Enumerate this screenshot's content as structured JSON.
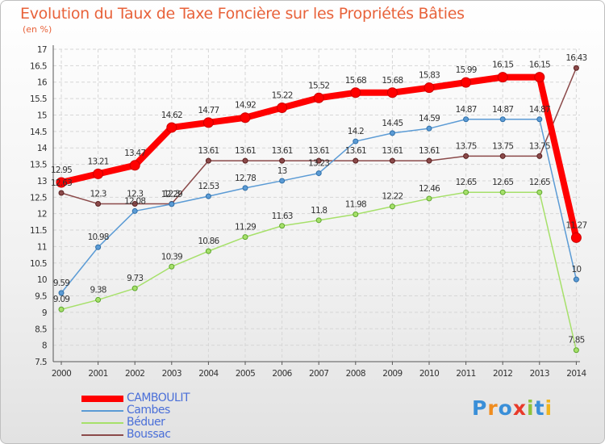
{
  "title": "Evolution du Taux de Taxe Foncière sur les Propriétés Bâties",
  "subtitle": "(en %)",
  "logo": {
    "text": "Proxiti",
    "colors": [
      "#3a8fd8",
      "#f08c1e",
      "#3a8fd8",
      "#e83a2a",
      "#8fc23a",
      "#3a8fd8",
      "#f0b41e"
    ]
  },
  "chart_data": {
    "type": "line",
    "x": [
      "2000",
      "2001",
      "2002",
      "2003",
      "2004",
      "2005",
      "2006",
      "2007",
      "2008",
      "2009",
      "2010",
      "2011",
      "2012",
      "2013",
      "2014"
    ],
    "ylim": [
      7.5,
      17
    ],
    "ytick_step": 0.5,
    "grid": true,
    "legend_position": "bottom-left",
    "series": [
      {
        "name": "CAMBOULIT",
        "color": "#ff0000",
        "values": [
          12.95,
          13.21,
          13.47,
          14.62,
          14.77,
          14.92,
          15.22,
          15.52,
          15.68,
          15.68,
          15.83,
          15.99,
          16.15,
          16.15,
          11.27
        ],
        "labels": [
          "12.95",
          "13.21",
          "13.47",
          "14.62",
          "14.77",
          "14.92",
          "15.22",
          "15.52",
          "15.68",
          "15.68",
          "15.83",
          "15.99",
          "16.15",
          "16.15",
          "11.27"
        ]
      },
      {
        "name": "Cambes",
        "color": "#5b9bd5",
        "values": [
          9.59,
          10.98,
          12.08,
          12.29,
          12.53,
          12.78,
          13,
          13.23,
          14.2,
          14.45,
          14.59,
          14.87,
          14.87,
          14.87,
          10
        ],
        "labels": [
          "9.59",
          "10.98",
          "12.08",
          "12.29",
          "12.53",
          "12.78",
          "13",
          "13.23",
          "14.2",
          "14.45",
          "14.59",
          "14.87",
          "14.87",
          "14.87",
          "10"
        ]
      },
      {
        "name": "Béduer",
        "color": "#a6e06a",
        "values": [
          9.09,
          9.38,
          9.73,
          10.39,
          10.86,
          11.29,
          11.63,
          11.8,
          11.98,
          12.22,
          12.46,
          12.65,
          12.65,
          12.65,
          7.85
        ],
        "labels": [
          "9.09",
          "9.38",
          "9.73",
          "10.39",
          "10.86",
          "11.29",
          "11.63",
          "11.8",
          "11.98",
          "12.22",
          "12.46",
          "12.65",
          "12.65",
          "12.65",
          "7.85"
        ]
      },
      {
        "name": "Boussac",
        "color": "#8b4a4a",
        "values": [
          12.63,
          12.3,
          12.3,
          12.3,
          13.61,
          13.61,
          13.61,
          13.61,
          13.61,
          13.61,
          13.61,
          13.75,
          13.75,
          13.75,
          16.43
        ],
        "labels": [
          "12.63",
          "12.3",
          "12.3",
          "12.3",
          "13.61",
          "13.61",
          "13.61",
          "13.61",
          "13.61",
          "13.61",
          "13.61",
          "13.75",
          "13.75",
          "13.75",
          "16.43"
        ]
      }
    ]
  }
}
